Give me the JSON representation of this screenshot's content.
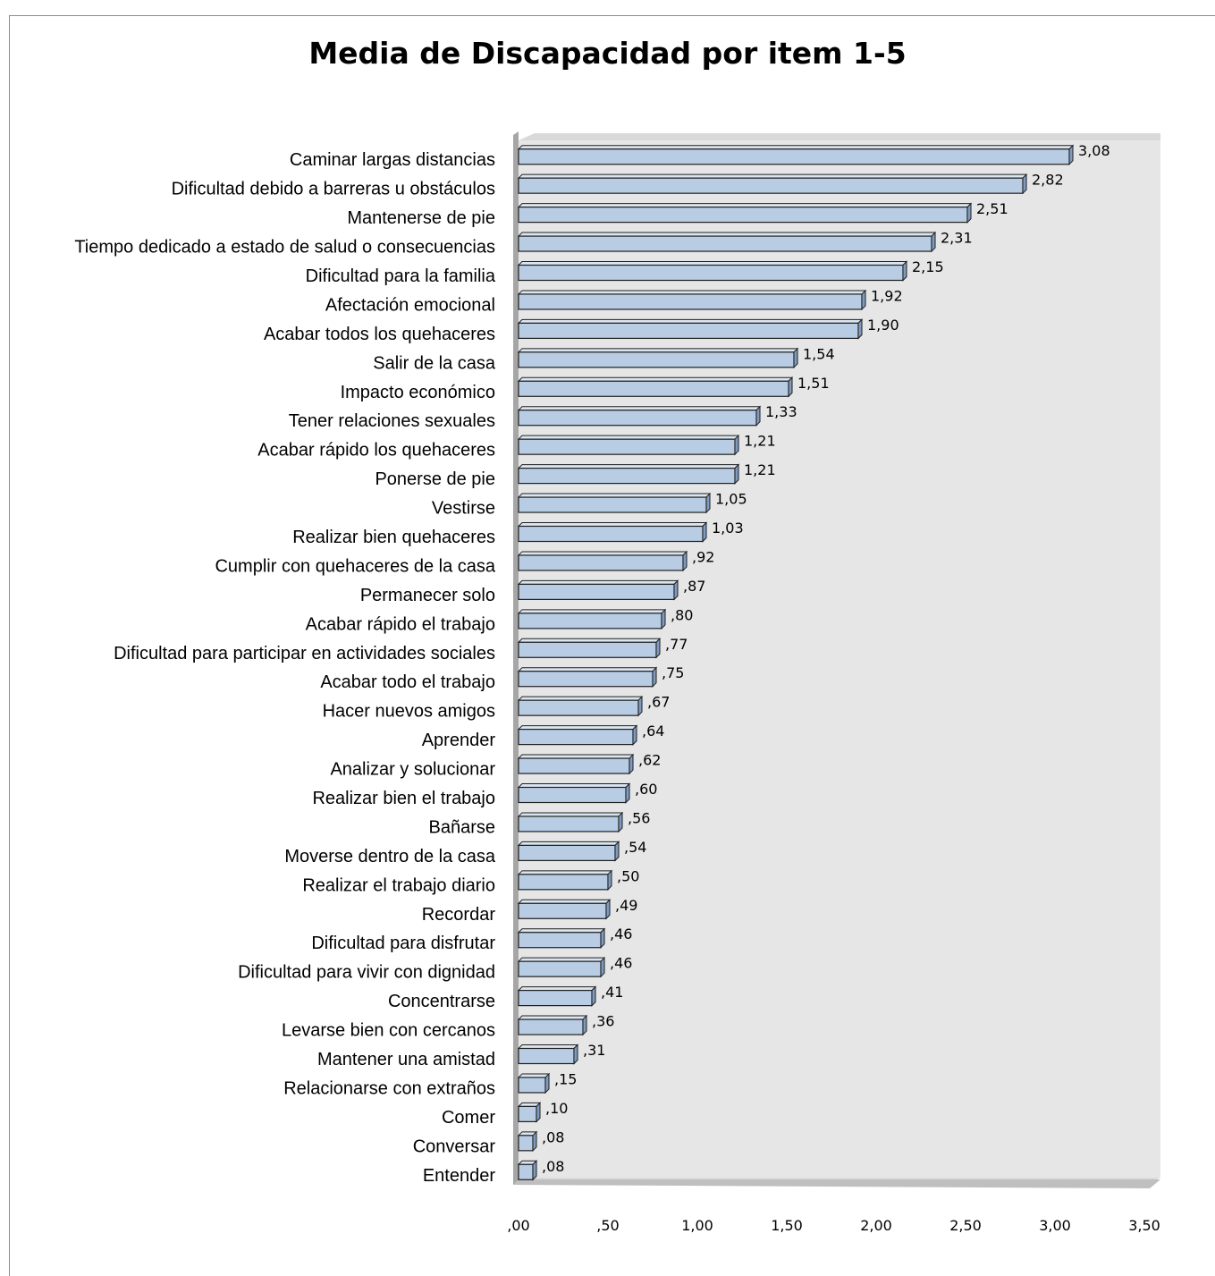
{
  "chart_data": {
    "type": "bar",
    "orientation": "horizontal",
    "title": "Media de Discapacidad por item 1-5",
    "categories": [
      "Caminar largas distancias",
      "Dificultad debido a barreras u obstáculos",
      "Mantenerse de pie",
      "Tiempo dedicado a estado de salud o consecuencias",
      "Dificultad para la familia",
      "Afectación emocional",
      "Acabar todos los quehaceres",
      "Salir de la casa",
      "Impacto económico",
      "Tener relaciones sexuales",
      "Acabar rápido los quehaceres",
      "Ponerse de pie",
      "Vestirse",
      "Realizar bien quehaceres",
      "Cumplir con quehaceres de la casa",
      "Permanecer solo",
      "Acabar rápido el trabajo",
      "Dificultad para participar en actividades sociales",
      "Acabar todo el trabajo",
      "Hacer nuevos amigos",
      "Aprender",
      "Analizar y solucionar",
      "Realizar bien el trabajo",
      "Bañarse",
      "Moverse dentro de la casa",
      "Realizar el trabajo diario",
      "Recordar",
      "Dificultad para disfrutar",
      "Dificultad para vivir con dignidad",
      "Concentrarse",
      "Levarse bien con cercanos",
      "Mantener una amistad",
      "Relacionarse con extraños",
      "Comer",
      "Conversar",
      "Entender"
    ],
    "values": [
      3.08,
      2.82,
      2.51,
      2.31,
      2.15,
      1.92,
      1.9,
      1.54,
      1.51,
      1.33,
      1.21,
      1.21,
      1.05,
      1.03,
      0.92,
      0.87,
      0.8,
      0.77,
      0.75,
      0.67,
      0.64,
      0.62,
      0.6,
      0.56,
      0.54,
      0.5,
      0.49,
      0.46,
      0.46,
      0.41,
      0.36,
      0.31,
      0.15,
      0.1,
      0.08,
      0.08
    ],
    "value_labels": [
      "3,08",
      "2,82",
      "2,51",
      "2,31",
      "2,15",
      "1,92",
      "1,90",
      "1,54",
      "1,51",
      "1,33",
      "1,21",
      "1,21",
      "1,05",
      "1,03",
      ",92",
      ",87",
      ",80",
      ",77",
      ",75",
      ",67",
      ",64",
      ",62",
      ",60",
      ",56",
      ",54",
      ",50",
      ",49",
      ",46",
      ",46",
      ",41",
      ",36",
      ",31",
      ",15",
      ",10",
      ",08",
      ",08"
    ],
    "x_ticks": [
      ",00",
      ",50",
      "1,00",
      "1,50",
      "2,00",
      "2,50",
      "3,00",
      "3,50"
    ],
    "xlim": [
      0,
      3.5
    ],
    "grid": false,
    "style": "3d-bars",
    "bar_color": "#b8cce4",
    "plot_background": "#e6e6e6"
  }
}
